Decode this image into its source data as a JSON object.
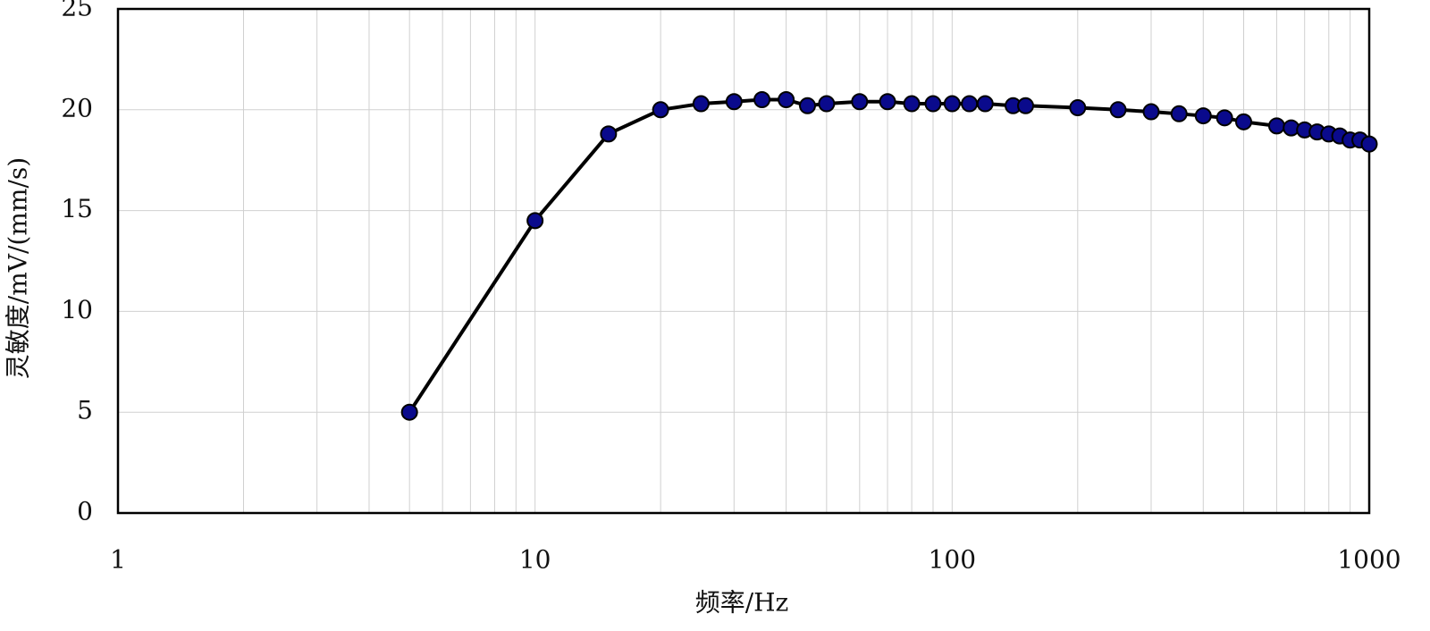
{
  "chart_data": {
    "type": "line",
    "xlabel": "频率/Hz",
    "ylabel": "灵敏度/mV/(mm/s)",
    "xscale": "log",
    "grid": true,
    "xlim": [
      1,
      1000
    ],
    "xticks": [
      1,
      10,
      100,
      1000
    ],
    "xminorticks": [
      2,
      3,
      4,
      5,
      6,
      7,
      8,
      9,
      20,
      30,
      40,
      50,
      60,
      70,
      80,
      90,
      200,
      300,
      400,
      500,
      600,
      700,
      800,
      900
    ],
    "ylim": [
      0,
      25
    ],
    "yticks": [
      0,
      5,
      10,
      15,
      20,
      25
    ],
    "x": [
      5,
      10,
      15,
      20,
      25,
      30,
      35,
      40,
      45,
      50,
      60,
      70,
      80,
      90,
      100,
      110,
      120,
      140,
      150,
      200,
      250,
      300,
      350,
      400,
      450,
      500,
      600,
      650,
      700,
      750,
      800,
      850,
      900,
      950,
      1000
    ],
    "series": [
      {
        "color": "#0a0a8c",
        "line_color": "#000000",
        "values": [
          5,
          14.5,
          18.8,
          20.0,
          20.3,
          20.4,
          20.5,
          20.5,
          20.2,
          20.3,
          20.4,
          20.4,
          20.3,
          20.3,
          20.3,
          20.3,
          20.3,
          20.2,
          20.2,
          20.1,
          20.0,
          19.9,
          19.8,
          19.7,
          19.6,
          19.4,
          19.2,
          19.1,
          19.0,
          18.9,
          18.8,
          18.7,
          18.5,
          18.5,
          18.3
        ]
      }
    ]
  }
}
